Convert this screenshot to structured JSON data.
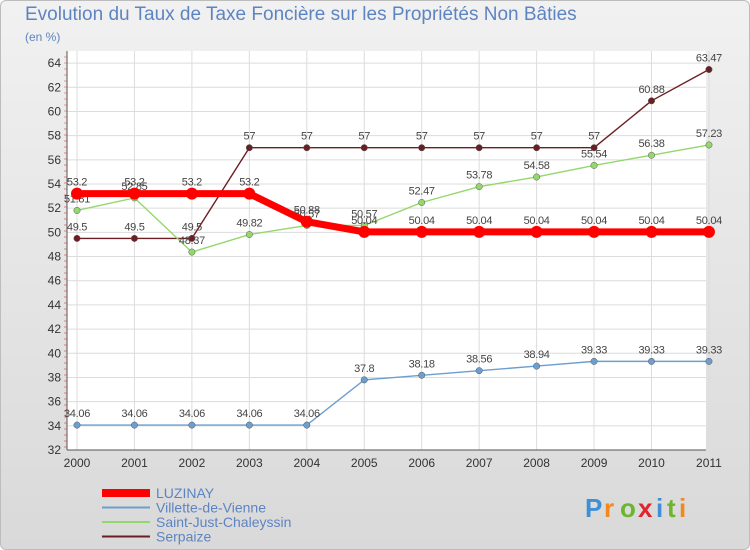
{
  "chart_data": {
    "type": "line",
    "title": "Evolution du Taux de Taxe Foncière sur les Propriétés Non Bâties",
    "ylabel": "(en %)",
    "xlabel": "",
    "ylim": [
      32,
      65
    ],
    "yticks": [
      32,
      34,
      36,
      38,
      40,
      42,
      44,
      46,
      48,
      50,
      52,
      54,
      56,
      58,
      60,
      62,
      64
    ],
    "categories": [
      "2000",
      "2001",
      "2002",
      "2003",
      "2004",
      "2005",
      "2006",
      "2007",
      "2008",
      "2009",
      "2010",
      "2011"
    ],
    "series": [
      {
        "name": "Serpaize",
        "color": "#6b1f24",
        "values": [
          49.5,
          49.5,
          49.5,
          57,
          57,
          57,
          57,
          57,
          57,
          57,
          60.88,
          63.47
        ],
        "labels": [
          "49.5",
          "49.5",
          "49.5",
          "57",
          "57",
          "57",
          "57",
          "57",
          "57",
          "57",
          "60.88",
          "63.47"
        ]
      },
      {
        "name": "Saint-Just-Chaleyssin",
        "color": "#94d86d",
        "values": [
          51.81,
          52.85,
          48.37,
          49.82,
          50.57,
          50.57,
          52.47,
          53.78,
          54.58,
          55.54,
          56.38,
          57.23
        ],
        "labels": [
          "51.81",
          "52.85",
          "48.37",
          "49.82",
          "50.57",
          "50.57",
          "52.47",
          "53.78",
          "54.58",
          "55.54",
          "56.38",
          "57.23"
        ]
      },
      {
        "name": "Villette-de-Vienne",
        "color": "#6c9fcf",
        "values": [
          34.06,
          34.06,
          34.06,
          34.06,
          34.06,
          37.8,
          38.18,
          38.56,
          38.94,
          39.33,
          39.33,
          39.33
        ],
        "labels": [
          "34.06",
          "34.06",
          "34.06",
          "34.06",
          "34.06",
          "37.8",
          "38.18",
          "38.56",
          "38.94",
          "39.33",
          "39.33",
          "39.33"
        ]
      },
      {
        "name": "LUZINAY",
        "color": "#ff0000",
        "values": [
          53.2,
          53.2,
          53.2,
          53.2,
          50.88,
          50.04,
          50.04,
          50.04,
          50.04,
          50.04,
          50.04,
          50.04
        ],
        "labels": [
          "53.2",
          "53.2",
          "53.2",
          "53.2",
          "50.88",
          "50.04",
          "50.04",
          "50.04",
          "50.04",
          "50.04",
          "50.04",
          "50.04"
        ]
      }
    ],
    "legend": {
      "position": "bottom-left",
      "entries": [
        "LUZINAY",
        "Villette-de-Vienne",
        "Saint-Just-Chaleyssin",
        "Serpaize"
      ]
    }
  },
  "brand": {
    "letters": [
      "P",
      "r",
      "o",
      "x",
      "i",
      "t",
      "i"
    ],
    "colors": [
      "#3f8fd6",
      "#f08a1c",
      "#6cb52d",
      "#e0242a",
      "#3f8fd6",
      "#6cb52d",
      "#f08a1c"
    ]
  }
}
